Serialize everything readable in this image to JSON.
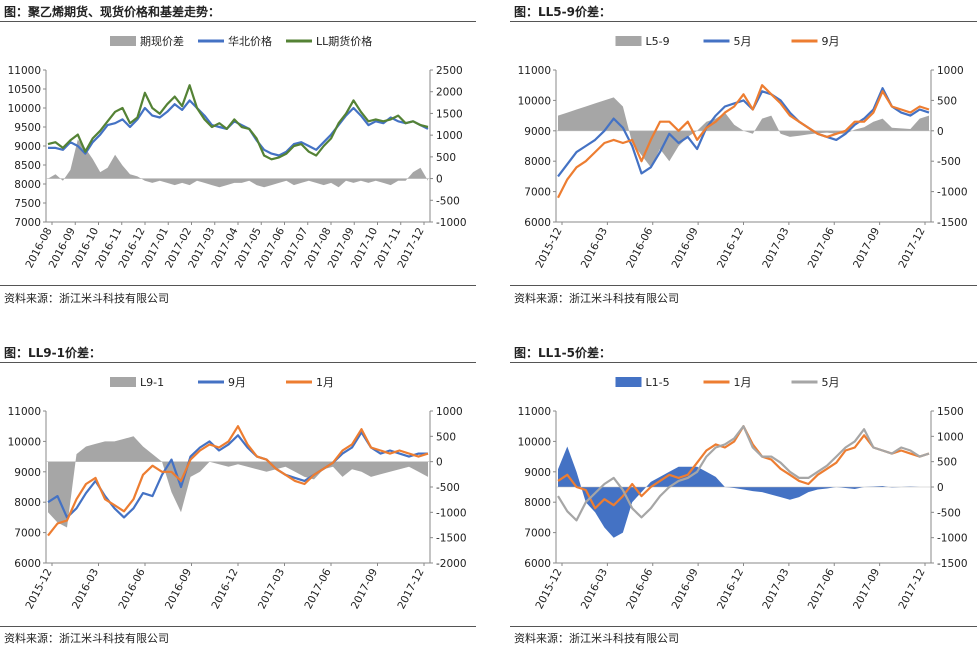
{
  "charts": [
    {
      "id": "c1",
      "title": "图：聚乙烯期货、现货价格和基差走势：",
      "source": "资料来源：浙江米斗科技有限公司",
      "legend": [
        {
          "name": "期现价差",
          "kind": "area",
          "color": "#a6a6a6"
        },
        {
          "name": "华北价格",
          "kind": "line",
          "color": "#4472c4"
        },
        {
          "name": "LL期货价格",
          "kind": "line",
          "color": "#548235"
        }
      ],
      "left_axis": {
        "min": 7000,
        "max": 11000,
        "ticks": [
          "7000",
          "7500",
          "8000",
          "8500",
          "9000",
          "9500",
          "10000",
          "10500",
          "11000"
        ]
      },
      "right_axis": {
        "min": -1000,
        "max": 2500,
        "ticks": [
          "-1000",
          "-500",
          "0",
          "500",
          "1000",
          "1500",
          "2000",
          "2500"
        ]
      },
      "x_ticks": [
        "2016-08",
        "2016-09",
        "2016-10",
        "2016-11",
        "2016-12",
        "2017-01",
        "2017-02",
        "2017-03",
        "2017-04",
        "2017-05",
        "2017-06",
        "2017-07",
        "2017-08",
        "2017-09",
        "2017-10",
        "2017-11",
        "2017-12"
      ],
      "chart_data": {
        "type": "line",
        "x_start": "2016-08",
        "x_end": "2017-12",
        "series": [
          {
            "name": "期现价差",
            "axis": "right",
            "kind": "area",
            "values": [
              0,
              100,
              -50,
              200,
              900,
              700,
              450,
              150,
              250,
              550,
              300,
              100,
              50,
              -50,
              -100,
              -50,
              -100,
              -150,
              -100,
              -150,
              -50,
              -100,
              -150,
              -200,
              -150,
              -100,
              -100,
              -50,
              -150,
              -200,
              -150,
              -100,
              -50,
              -150,
              -100,
              -50,
              -100,
              -150,
              -100,
              -200,
              -50,
              -100,
              -50,
              -100,
              -50,
              -100,
              -150,
              -50,
              -50,
              150,
              250,
              -50
            ]
          },
          {
            "name": "华北价格",
            "axis": "left",
            "values": [
              8950,
              8950,
              8900,
              9100,
              9000,
              8800,
              9100,
              9300,
              9550,
              9600,
              9700,
              9500,
              9700,
              10000,
              9800,
              9750,
              9900,
              10100,
              9950,
              10200,
              10000,
              9800,
              9550,
              9500,
              9450,
              9650,
              9550,
              9450,
              9150,
              8900,
              8800,
              8750,
              8850,
              9050,
              9100,
              9000,
              8900,
              9100,
              9300,
              9550,
              9800,
              10000,
              9800,
              9550,
              9650,
              9600,
              9750,
              9650,
              9600,
              9650,
              9550,
              9450
            ]
          },
          {
            "name": "LL期货价格",
            "axis": "left",
            "values": [
              9050,
              9100,
              8950,
              9150,
              9300,
              8850,
              9200,
              9400,
              9650,
              9900,
              10000,
              9600,
              9750,
              10400,
              10000,
              9850,
              10100,
              10300,
              10050,
              10600,
              10000,
              9700,
              9500,
              9600,
              9450,
              9700,
              9500,
              9450,
              9200,
              8750,
              8650,
              8700,
              8800,
              9000,
              9050,
              8850,
              8750,
              9000,
              9200,
              9600,
              9850,
              10200,
              9900,
              9650,
              9700,
              9650,
              9700,
              9800,
              9600,
              9650,
              9550,
              9500
            ]
          }
        ]
      }
    },
    {
      "id": "c2",
      "title": "图：LL5-9价差：",
      "source": "资料来源：浙江米斗科技有限公司",
      "legend": [
        {
          "name": "L5-9",
          "kind": "area",
          "color": "#a6a6a6"
        },
        {
          "name": "5月",
          "kind": "line",
          "color": "#4472c4"
        },
        {
          "name": "9月",
          "kind": "line",
          "color": "#ed7d31"
        }
      ],
      "left_axis": {
        "min": 6000,
        "max": 11000,
        "ticks": [
          "6000",
          "7000",
          "8000",
          "9000",
          "10000",
          "11000"
        ]
      },
      "right_axis": {
        "min": -1500,
        "max": 1000,
        "ticks": [
          "-1500",
          "-1000",
          "-500",
          "0",
          "500",
          "1000"
        ]
      },
      "x_ticks": [
        "2015-12",
        "2016-03",
        "2016-06",
        "2016-09",
        "2016-12",
        "2017-03",
        "2017-06",
        "2017-09",
        "2017-12"
      ],
      "chart_data": {
        "type": "line",
        "x_start": "2015-12",
        "x_end": "2017-12",
        "series": [
          {
            "name": "L5-9",
            "axis": "right",
            "kind": "area",
            "values": [
              250,
              300,
              350,
              400,
              450,
              500,
              550,
              400,
              -200,
              -400,
              -600,
              -300,
              -500,
              -250,
              -100,
              0,
              150,
              200,
              300,
              100,
              0,
              -50,
              200,
              250,
              -50,
              -100,
              -80,
              -60,
              -40,
              -30,
              -50,
              -50,
              20,
              60,
              150,
              200,
              50,
              40,
              30,
              200,
              250
            ]
          },
          {
            "name": "5月",
            "axis": "left",
            "values": [
              7500,
              7900,
              8300,
              8500,
              8700,
              9000,
              9400,
              9100,
              8500,
              7600,
              7800,
              8300,
              8900,
              8600,
              8800,
              8400,
              9100,
              9500,
              9800,
              9900,
              10000,
              9700,
              10300,
              10200,
              10000,
              9600,
              9300,
              9100,
              8900,
              8800,
              8700,
              8900,
              9200,
              9400,
              9700,
              10400,
              9800,
              9600,
              9500,
              9700,
              9600
            ]
          },
          {
            "name": "9月",
            "axis": "left",
            "values": [
              6800,
              7400,
              7800,
              8000,
              8300,
              8600,
              8700,
              8600,
              8700,
              8000,
              8700,
              9300,
              9300,
              9000,
              9300,
              8700,
              9100,
              9300,
              9600,
              9800,
              10200,
              9700,
              10500,
              10200,
              9900,
              9500,
              9300,
              9100,
              8900,
              8800,
              8900,
              9000,
              9300,
              9300,
              9600,
              10300,
              9800,
              9700,
              9600,
              9800,
              9700
            ]
          }
        ]
      }
    },
    {
      "id": "c3",
      "title": "图：LL9-1价差：",
      "source": "资料来源：浙江米斗科技有限公司",
      "legend": [
        {
          "name": "L9-1",
          "kind": "area",
          "color": "#a6a6a6"
        },
        {
          "name": "9月",
          "kind": "line",
          "color": "#4472c4"
        },
        {
          "name": "1月",
          "kind": "line",
          "color": "#ed7d31"
        }
      ],
      "left_axis": {
        "min": 6000,
        "max": 11000,
        "ticks": [
          "6000",
          "7000",
          "8000",
          "9000",
          "10000",
          "11000"
        ]
      },
      "right_axis": {
        "min": -2000,
        "max": 1000,
        "ticks": [
          "-2000",
          "-1500",
          "-1000",
          "-500",
          "0",
          "500",
          "1000"
        ]
      },
      "x_ticks": [
        "2015-12",
        "2016-03",
        "2016-06",
        "2016-09",
        "2016-12",
        "2017-03",
        "2017-06",
        "2017-09",
        "2017-12"
      ],
      "chart_data": {
        "type": "line",
        "x_start": "2015-12",
        "x_end": "2017-12",
        "series": [
          {
            "name": "L9-1",
            "axis": "right",
            "kind": "area",
            "values": [
              -1000,
              -1200,
              -1300,
              150,
              300,
              350,
              400,
              400,
              450,
              500,
              300,
              150,
              0,
              -600,
              -1000,
              -300,
              -200,
              0,
              -50,
              -100,
              -50,
              -100,
              -150,
              -200,
              -150,
              -100,
              -200,
              -300,
              -350,
              -150,
              -100,
              -300,
              -150,
              -200,
              -300,
              -250,
              -200,
              -150,
              -100,
              -200,
              -300
            ]
          },
          {
            "name": "9月",
            "axis": "left",
            "values": [
              8000,
              8200,
              7500,
              7800,
              8300,
              8700,
              8200,
              7800,
              7500,
              7800,
              8300,
              8200,
              8900,
              9400,
              8500,
              9500,
              9800,
              10000,
              9700,
              9900,
              10200,
              9800,
              9500,
              9400,
              9100,
              8900,
              8800,
              8700,
              8900,
              9100,
              9300,
              9600,
              9800,
              10300,
              9800,
              9600,
              9700,
              9600,
              9500,
              9600,
              9600
            ]
          },
          {
            "name": "1月",
            "axis": "left",
            "values": [
              6900,
              7300,
              7400,
              8100,
              8600,
              8800,
              8100,
              7900,
              7700,
              8100,
              8900,
              9200,
              9000,
              9000,
              8700,
              9400,
              9700,
              9900,
              9800,
              10000,
              10500,
              9900,
              9500,
              9400,
              9100,
              8900,
              8700,
              8600,
              8900,
              9100,
              9300,
              9700,
              9900,
              10400,
              9800,
              9700,
              9600,
              9700,
              9600,
              9500,
              9600
            ]
          }
        ]
      }
    },
    {
      "id": "c4",
      "title": "图：LL1-5价差：",
      "source": "资料来源：浙江米斗科技有限公司",
      "legend": [
        {
          "name": "L1-5",
          "kind": "area",
          "color": "#4472c4"
        },
        {
          "name": "1月",
          "kind": "line",
          "color": "#ed7d31"
        },
        {
          "name": "5月",
          "kind": "line",
          "color": "#a6a6a6"
        }
      ],
      "left_axis": {
        "min": 6000,
        "max": 11000,
        "ticks": [
          "6000",
          "7000",
          "8000",
          "9000",
          "10000",
          "11000"
        ]
      },
      "right_axis": {
        "min": -1500,
        "max": 1500,
        "ticks": [
          "-1500",
          "-1000",
          "-500",
          "0",
          "500",
          "1000",
          "1500"
        ]
      },
      "x_ticks": [
        "2015-12",
        "2016-03",
        "2016-06",
        "2016-09",
        "2016-12",
        "2017-03",
        "2017-06",
        "2017-09",
        "2017-12"
      ],
      "chart_data": {
        "type": "line",
        "x_start": "2015-12",
        "x_end": "2017-12",
        "series": [
          {
            "name": "L1-5",
            "axis": "right",
            "kind": "area",
            "values": [
              350,
              800,
              300,
              -300,
              -500,
              -800,
              -1000,
              -900,
              -300,
              -100,
              100,
              200,
              300,
              400,
              400,
              400,
              300,
              200,
              0,
              -20,
              -50,
              -80,
              -100,
              -150,
              -200,
              -250,
              -200,
              -100,
              -50,
              -30,
              0,
              -20,
              -40,
              0,
              10,
              20,
              -10,
              0,
              10,
              0,
              0
            ]
          },
          {
            "name": "1月",
            "axis": "left",
            "values": [
              8700,
              8900,
              8500,
              8400,
              7800,
              8100,
              7900,
              8200,
              8600,
              8200,
              8500,
              8700,
              8900,
              8800,
              8900,
              9300,
              9700,
              9900,
              9800,
              10000,
              10500,
              9900,
              9500,
              9400,
              9100,
              8900,
              8700,
              8600,
              8900,
              9100,
              9300,
              9700,
              9800,
              10200,
              9800,
              9700,
              9600,
              9700,
              9600,
              9500,
              9600
            ]
          },
          {
            "name": "5月",
            "axis": "left",
            "values": [
              8200,
              7700,
              7400,
              8000,
              8300,
              8600,
              8800,
              8400,
              7800,
              7500,
              7800,
              8200,
              8500,
              8700,
              8800,
              9000,
              9500,
              9800,
              9900,
              10100,
              10500,
              9800,
              9500,
              9500,
              9300,
              9000,
              8800,
              8800,
              9000,
              9200,
              9500,
              9800,
              10000,
              10400,
              9800,
              9700,
              9600,
              9800,
              9700,
              9500,
              9600
            ]
          }
        ]
      }
    }
  ]
}
